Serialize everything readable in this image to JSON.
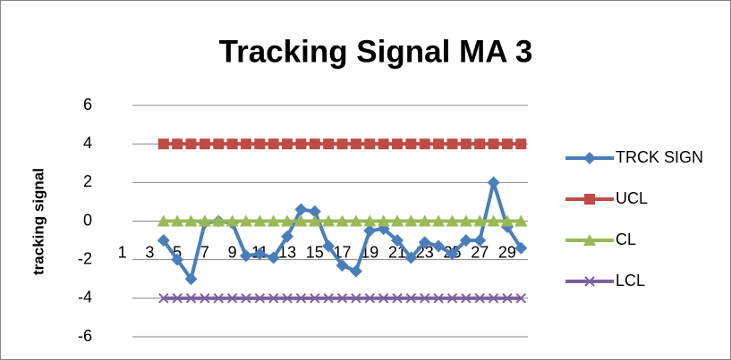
{
  "chart_data": {
    "type": "line",
    "title": "Tracking Signal MA 3",
    "y_label": "tracking signal",
    "categories": [
      1,
      null,
      3,
      null,
      5,
      null,
      7,
      null,
      9,
      null,
      11,
      null,
      13,
      null,
      15,
      null,
      17,
      null,
      19,
      null,
      21,
      null,
      23,
      null,
      25,
      null,
      27,
      null,
      29,
      null
    ],
    "series": [
      {
        "name": "TRCK SIGN",
        "color": "#4a7ebb",
        "marker": "diamond",
        "values": [
          null,
          null,
          null,
          -1.0,
          -2.0,
          -3.0,
          -0.1,
          0,
          -0.1,
          -1.8,
          -1.7,
          -1.9,
          -0.8,
          0.6,
          0.5,
          -1.3,
          -2.3,
          -2.6,
          -0.5,
          -0.4,
          -1.0,
          -1.9,
          -1.1,
          -1.3,
          -1.7,
          -1.0,
          -1.0,
          2.0,
          -0.3,
          -1.4
        ]
      },
      {
        "name": "UCL",
        "color": "#be4b48",
        "marker": "square",
        "values": [
          null,
          null,
          null,
          4,
          4,
          4,
          4,
          4,
          4,
          4,
          4,
          4,
          4,
          4,
          4,
          4,
          4,
          4,
          4,
          4,
          4,
          4,
          4,
          4,
          4,
          4,
          4,
          4,
          4,
          4
        ]
      },
      {
        "name": "CL",
        "color": "#98b954",
        "marker": "triangle",
        "values": [
          null,
          null,
          null,
          0,
          0,
          0,
          0,
          0,
          0,
          0,
          0,
          0,
          0,
          0,
          0,
          0,
          0,
          0,
          0,
          0,
          0,
          0,
          0,
          0,
          0,
          0,
          0,
          0,
          0,
          0
        ]
      },
      {
        "name": "LCL",
        "color": "#7d60a0",
        "marker": "x",
        "values": [
          null,
          null,
          null,
          -4,
          -4,
          -4,
          -4,
          -4,
          -4,
          -4,
          -4,
          -4,
          -4,
          -4,
          -4,
          -4,
          -4,
          -4,
          -4,
          -4,
          -4,
          -4,
          -4,
          -4,
          -4,
          -4,
          -4,
          -4,
          -4,
          -4
        ]
      }
    ],
    "ylim": [
      -6,
      6
    ],
    "yticks": [
      -6,
      -4,
      -2,
      0,
      2,
      4,
      6
    ],
    "grid": true,
    "legend": "right"
  }
}
